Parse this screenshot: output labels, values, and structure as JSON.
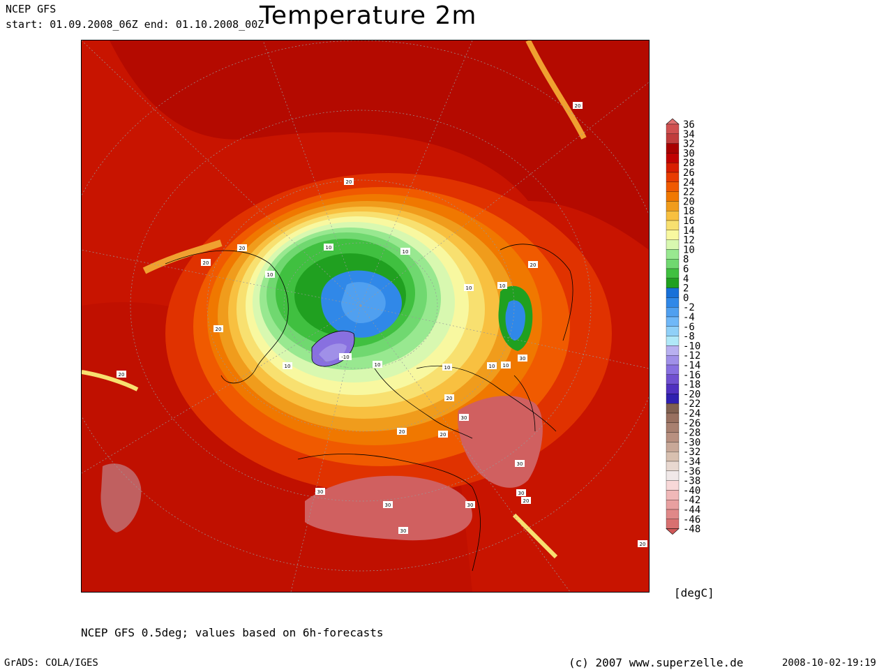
{
  "header": {
    "model": "NCEP GFS",
    "period": "start: 01.09.2008_06Z end: 01.10.2008_00Z",
    "title": "Temperature 2m"
  },
  "colorbar": {
    "unit": "[degC]",
    "levels": [
      "36",
      "34",
      "32",
      "30",
      "28",
      "26",
      "24",
      "22",
      "20",
      "18",
      "16",
      "14",
      "12",
      "10",
      "8",
      "6",
      "4",
      "2",
      "0",
      "-2",
      "-4",
      "-6",
      "-8",
      "-10",
      "-12",
      "-14",
      "-16",
      "-18",
      "-20",
      "-22",
      "-24",
      "-26",
      "-28",
      "-30",
      "-32",
      "-34",
      "-36",
      "-38",
      "-40",
      "-42",
      "-44",
      "-46",
      "-48"
    ],
    "colors": [
      "#e07070",
      "#d05050",
      "#c03c3c",
      "#a80000",
      "#c00000",
      "#d81e00",
      "#e83c00",
      "#f05a00",
      "#f07800",
      "#f09c1c",
      "#f8c040",
      "#f8e070",
      "#f8f8a0",
      "#d8f8b0",
      "#98e890",
      "#70d870",
      "#40c040",
      "#20a020",
      "#1870d8",
      "#3088e8",
      "#50a0f0",
      "#70b8f8",
      "#90d0f8",
      "#b0e8f8",
      "#b8b0f0",
      "#a090e8",
      "#8870e0",
      "#7050d0",
      "#5030c0",
      "#3020b0",
      "#806050",
      "#987060",
      "#a88070",
      "#b89080",
      "#c8a898",
      "#d8c0b0",
      "#e8d8d0",
      "#f0e8e8",
      "#f8d8d8",
      "#f0b8b8",
      "#e8a0a0",
      "#e08888",
      "#d87070",
      "#d05858"
    ]
  },
  "map": {
    "contour_labels": [
      "20",
      "10",
      "-10",
      "30"
    ],
    "colors": {
      "ocean_warm": "#c81400",
      "ocean_deep": "#b40a00",
      "sea_orange": "#e83c00",
      "polar_green": "#40c040",
      "ice_blue": "#3088e8",
      "greenland": "#8870e0",
      "desert": "#d06060"
    }
  },
  "footer": {
    "note": "NCEP GFS 0.5deg; values based on 6h-forecasts",
    "software": "GrADS: COLA/IGES",
    "copyright": "(c) 2007 www.superzelle.de",
    "timestamp": "2008-10-02-19:19"
  }
}
